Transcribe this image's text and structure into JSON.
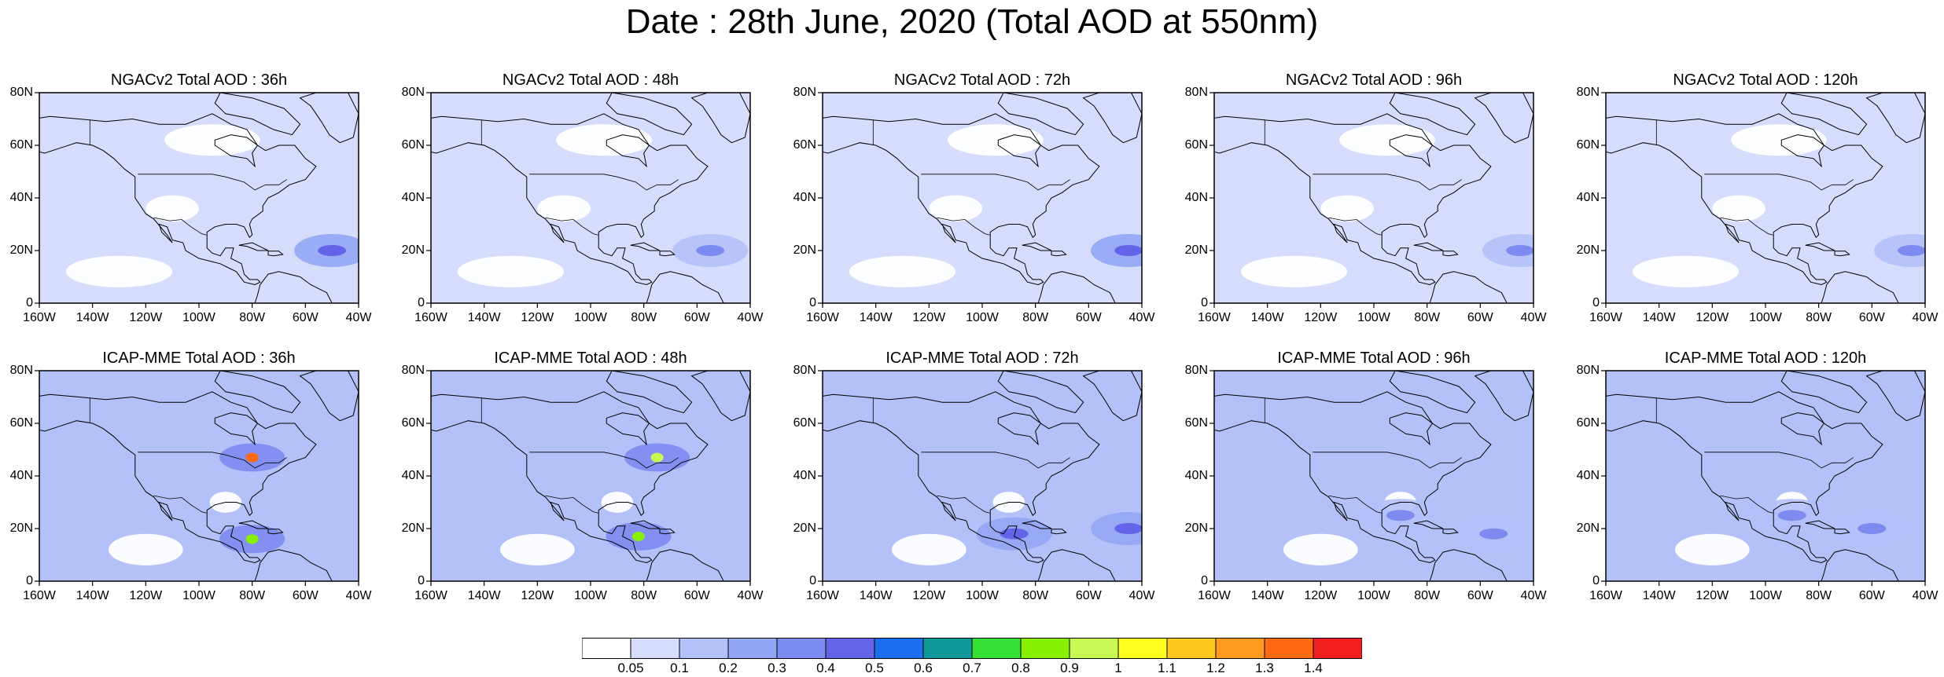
{
  "title": "Date : 28th June, 2020 (Total AOD at 550nm)",
  "map_extent": {
    "lon": [
      -160,
      -40
    ],
    "lat": [
      0,
      80
    ]
  },
  "lat_ticks": [
    "80N",
    "60N",
    "40N",
    "20N",
    "0"
  ],
  "lon_ticks": [
    "160W",
    "140W",
    "120W",
    "100W",
    "80W",
    "60W",
    "40W"
  ],
  "panels": [
    {
      "title": "NGACv2 Total AOD : 36h",
      "model": "NGACv2",
      "lead_h": 36
    },
    {
      "title": "NGACv2 Total AOD : 48h",
      "model": "NGACv2",
      "lead_h": 48
    },
    {
      "title": "NGACv2 Total AOD : 72h",
      "model": "NGACv2",
      "lead_h": 72
    },
    {
      "title": "NGACv2 Total AOD : 96h",
      "model": "NGACv2",
      "lead_h": 96
    },
    {
      "title": "NGACv2 Total AOD : 120h",
      "model": "NGACv2",
      "lead_h": 120
    },
    {
      "title": "ICAP-MME Total AOD : 36h",
      "model": "ICAP-MME",
      "lead_h": 36
    },
    {
      "title": "ICAP-MME Total AOD : 48h",
      "model": "ICAP-MME",
      "lead_h": 48
    },
    {
      "title": "ICAP-MME Total AOD : 72h",
      "model": "ICAP-MME",
      "lead_h": 72
    },
    {
      "title": "ICAP-MME Total AOD : 96h",
      "model": "ICAP-MME",
      "lead_h": 96
    },
    {
      "title": "ICAP-MME Total AOD : 120h",
      "model": "ICAP-MME",
      "lead_h": 120
    }
  ],
  "legend": {
    "labels": [
      "0.05",
      "0.1",
      "0.2",
      "0.3",
      "0.4",
      "0.5",
      "0.6",
      "0.7",
      "0.8",
      "0.9",
      "1",
      "1.1",
      "1.2",
      "1.3",
      "1.4"
    ],
    "colors": [
      "#ffffff",
      "#d6dcfb",
      "#b4c0f8",
      "#93a6f4",
      "#7d8bf0",
      "#6464e8",
      "#1e6ef0",
      "#0e9a9a",
      "#36e036",
      "#86f000",
      "#c8f852",
      "#ffff1e",
      "#ffc81e",
      "#ff9a1e",
      "#ff6a10",
      "#f01e1e"
    ]
  },
  "hotspots": [
    {
      "panel": 0,
      "lon": -50,
      "lat": 20,
      "level": 5
    },
    {
      "panel": 1,
      "lon": -55,
      "lat": 20,
      "level": 4
    },
    {
      "panel": 2,
      "lon": -45,
      "lat": 20,
      "level": 5
    },
    {
      "panel": 3,
      "lon": -45,
      "lat": 20,
      "level": 4
    },
    {
      "panel": 4,
      "lon": -45,
      "lat": 20,
      "level": 4
    },
    {
      "panel": 5,
      "lon": -80,
      "lat": 16,
      "level": 9
    },
    {
      "panel": 5,
      "lon": -80,
      "lat": 47,
      "level": 14
    },
    {
      "panel": 6,
      "lon": -82,
      "lat": 17,
      "level": 9
    },
    {
      "panel": 6,
      "lon": -75,
      "lat": 47,
      "level": 10
    },
    {
      "panel": 7,
      "lon": -45,
      "lat": 20,
      "level": 5
    },
    {
      "panel": 7,
      "lon": -88,
      "lat": 18,
      "level": 5
    },
    {
      "panel": 8,
      "lon": -55,
      "lat": 18,
      "level": 4
    },
    {
      "panel": 8,
      "lon": -90,
      "lat": 25,
      "level": 4
    },
    {
      "panel": 9,
      "lon": -60,
      "lat": 20,
      "level": 4
    },
    {
      "panel": 9,
      "lon": -90,
      "lat": 25,
      "level": 4
    }
  ]
}
